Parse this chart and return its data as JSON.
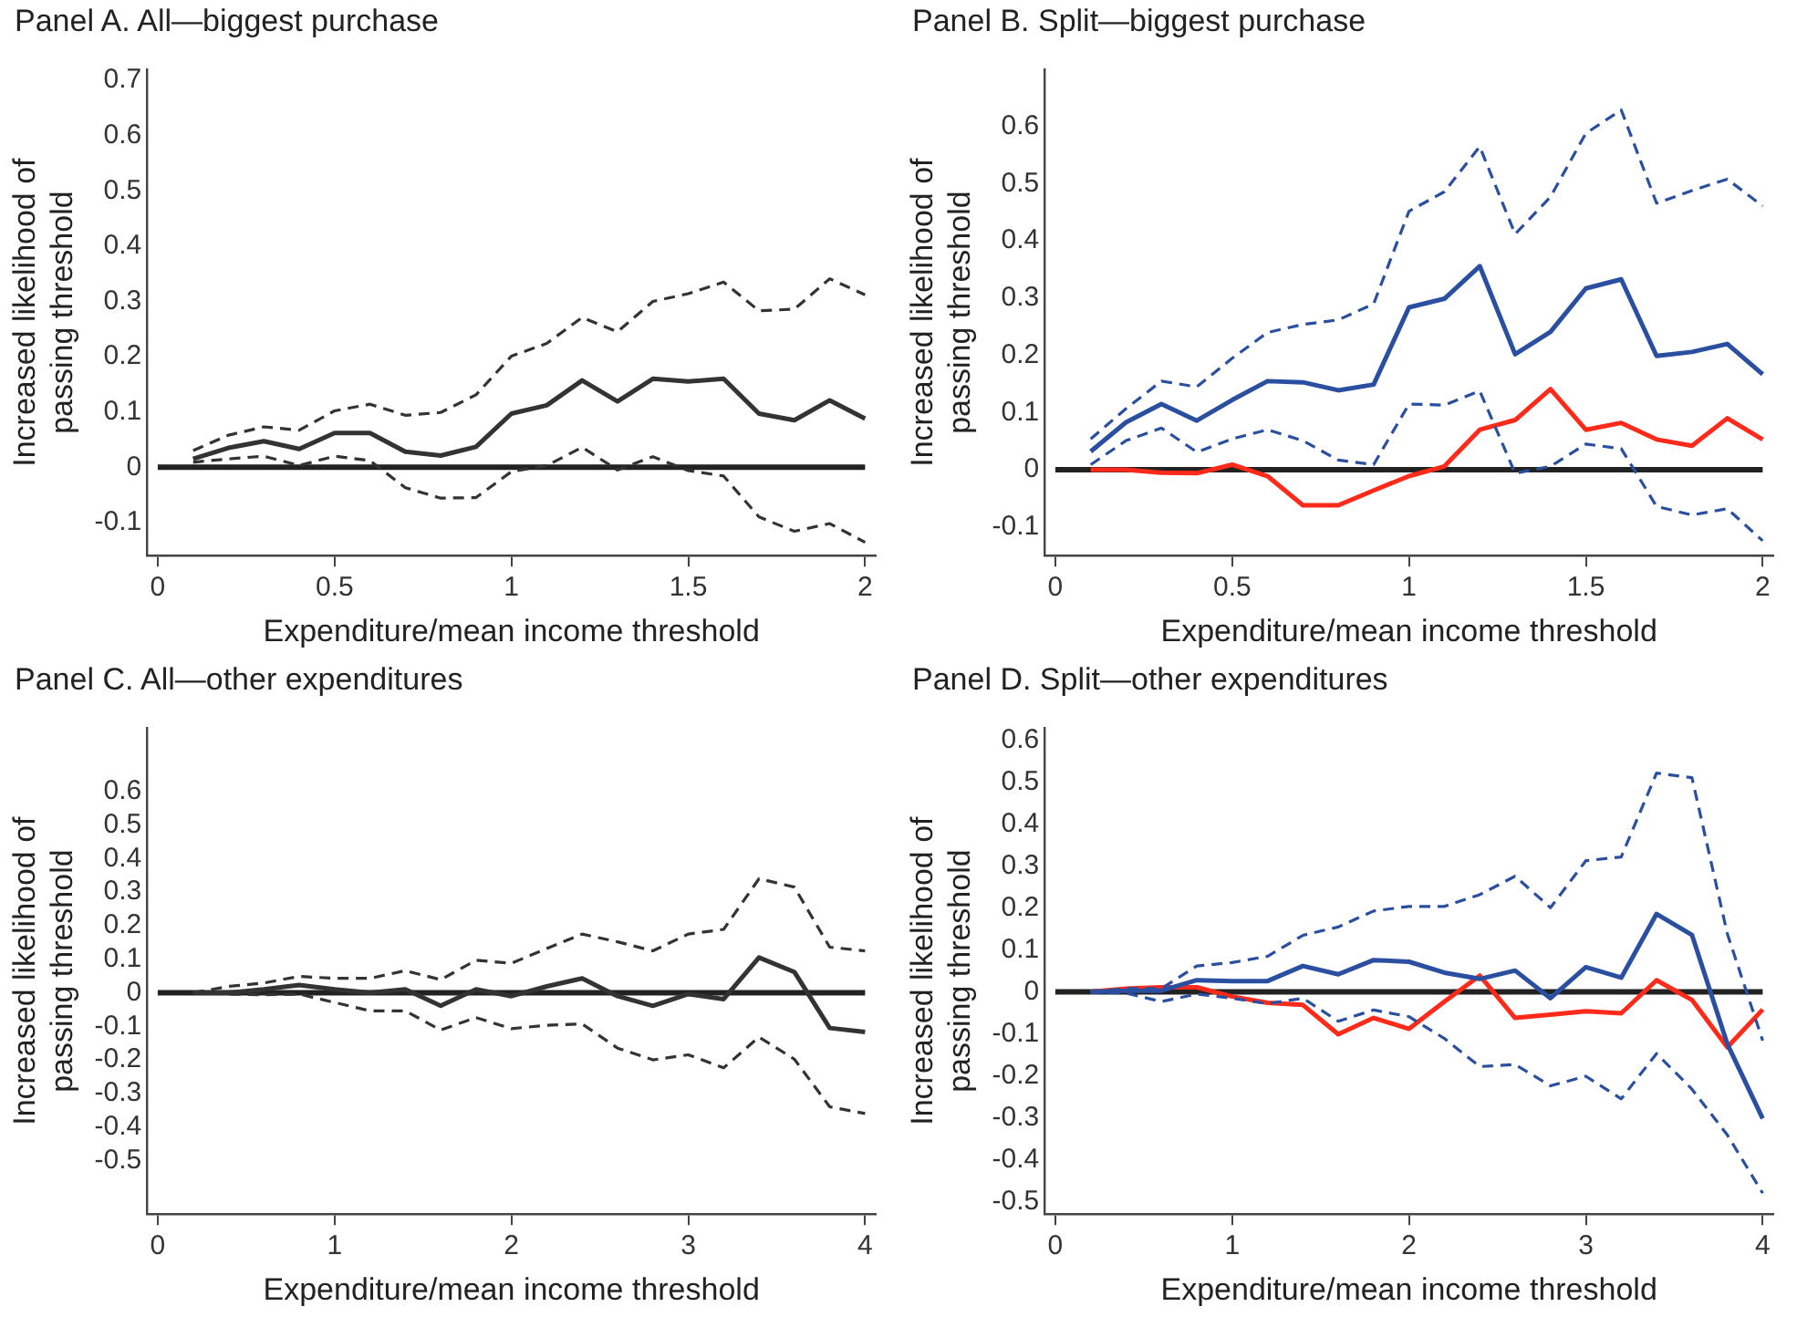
{
  "chart_data": [
    {
      "type": "line",
      "title": "Panel A. All—biggest purchase",
      "xlabel": "Expenditure/mean income threshold",
      "ylabel": "Increased likelihood of passing threshold",
      "x": [
        0.1,
        0.2,
        0.3,
        0.4,
        0.5,
        0.6,
        0.7,
        0.8,
        0.9,
        1.0,
        1.1,
        1.2,
        1.3,
        1.4,
        1.5,
        1.6,
        1.7,
        1.8,
        1.9,
        2.0
      ],
      "xlim": [
        -0.03,
        2.03
      ],
      "xticks": [
        0,
        0.5,
        1,
        1.5,
        2
      ],
      "ylim": [
        -0.16,
        0.72
      ],
      "yticks": [
        -0.1,
        0,
        0.1,
        0.2,
        0.3,
        0.4,
        0.5,
        0.6,
        0.7
      ],
      "grid": false,
      "legend": false,
      "marker": "none",
      "ref_lines": [
        {
          "axis": "y",
          "value": 0,
          "color": "#222222"
        }
      ],
      "series": [
        {
          "color": "#333333",
          "line_style": "solid",
          "values": [
            0.015,
            0.035,
            0.047,
            0.033,
            0.062,
            0.062,
            0.028,
            0.021,
            0.037,
            0.097,
            0.112,
            0.157,
            0.119,
            0.16,
            0.155,
            0.16,
            0.097,
            0.085,
            0.121,
            0.088
          ]
        },
        {
          "color": "#333333",
          "line_style": "dashed",
          "values": [
            0.03,
            0.058,
            0.073,
            0.067,
            0.102,
            0.114,
            0.094,
            0.099,
            0.131,
            0.201,
            0.224,
            0.271,
            0.245,
            0.3,
            0.314,
            0.335,
            0.283,
            0.286,
            0.341,
            0.312
          ]
        },
        {
          "color": "#333333",
          "line_style": "dashed",
          "values": [
            0.009,
            0.015,
            0.02,
            0.003,
            0.02,
            0.012,
            -0.037,
            -0.056,
            -0.055,
            -0.008,
            0.003,
            0.036,
            -0.005,
            0.019,
            -0.006,
            -0.016,
            -0.09,
            -0.116,
            -0.102,
            -0.136
          ]
        }
      ]
    },
    {
      "type": "line",
      "title": "Panel B. Split—biggest purchase",
      "xlabel": "Expenditure/mean income threshold",
      "ylabel": "Increased likelihood of passing threshold",
      "x": [
        0.1,
        0.2,
        0.3,
        0.4,
        0.5,
        0.6,
        0.7,
        0.8,
        0.9,
        1.0,
        1.1,
        1.2,
        1.3,
        1.4,
        1.5,
        1.6,
        1.7,
        1.8,
        1.9,
        2.0
      ],
      "xlim": [
        -0.03,
        2.03
      ],
      "xticks": [
        0,
        0.5,
        1,
        1.5,
        2
      ],
      "ylim": [
        -0.15,
        0.7
      ],
      "yticks": [
        -0.1,
        0,
        0.1,
        0.2,
        0.3,
        0.4,
        0.5,
        0.6
      ],
      "grid": false,
      "legend": false,
      "marker": "none",
      "ref_lines": [
        {
          "axis": "y",
          "value": 0,
          "color": "#222222"
        }
      ],
      "series": [
        {
          "color": "#2a4fa0",
          "line_style": "solid",
          "values": [
            0.032,
            0.083,
            0.115,
            0.086,
            0.122,
            0.155,
            0.153,
            0.139,
            0.149,
            0.284,
            0.299,
            0.356,
            0.202,
            0.241,
            0.317,
            0.333,
            0.199,
            0.206,
            0.22,
            0.167
          ]
        },
        {
          "color": "#2a4fa0",
          "line_style": "dashed",
          "values": [
            0.054,
            0.107,
            0.155,
            0.145,
            0.195,
            0.24,
            0.254,
            0.262,
            0.29,
            0.452,
            0.486,
            0.565,
            0.412,
            0.477,
            0.588,
            0.629,
            0.466,
            0.488,
            0.508,
            0.461
          ]
        },
        {
          "color": "#2a4fa0",
          "line_style": "dashed",
          "values": [
            0.009,
            0.051,
            0.073,
            0.031,
            0.054,
            0.07,
            0.051,
            0.017,
            0.009,
            0.115,
            0.113,
            0.138,
            -0.006,
            0.006,
            0.045,
            0.037,
            -0.064,
            -0.079,
            -0.068,
            -0.124
          ]
        },
        {
          "color": "#ff2a1a",
          "line_style": "solid",
          "values": [
            0,
            0,
            -0.005,
            -0.006,
            0.009,
            -0.011,
            -0.062,
            -0.062,
            -0.036,
            -0.011,
            0.006,
            0.07,
            0.087,
            0.141,
            0.07,
            0.082,
            0.053,
            0.042,
            0.09,
            0.053
          ]
        }
      ]
    },
    {
      "type": "line",
      "title": "Panel C. All—other expenditures",
      "xlabel": "Expenditure/mean income threshold",
      "ylabel": "Increased likelihood of passing threshold",
      "x": [
        0.2,
        0.4,
        0.6,
        0.8,
        1.0,
        1.2,
        1.4,
        1.6,
        1.8,
        2.0,
        2.2,
        2.4,
        2.6,
        2.8,
        3.0,
        3.2,
        3.4,
        3.6,
        3.8,
        4.0
      ],
      "xlim": [
        -0.06,
        4.06
      ],
      "xticks": [
        0,
        1,
        2,
        3,
        4
      ],
      "ylim": [
        -0.66,
        0.79
      ],
      "yticks": [
        -0.5,
        -0.4,
        -0.3,
        -0.2,
        -0.1,
        0,
        0.1,
        0.2,
        0.3,
        0.4,
        0.5,
        0.6
      ],
      "grid": false,
      "legend": false,
      "marker": "none",
      "ref_lines": [
        {
          "axis": "y",
          "value": 0,
          "color": "#222222"
        }
      ],
      "series": [
        {
          "color": "#333333",
          "line_style": "solid",
          "values": [
            0,
            0,
            0.01,
            0.023,
            0.01,
            0,
            0.01,
            -0.039,
            0.01,
            -0.01,
            0.019,
            0.043,
            -0.01,
            -0.039,
            -0.004,
            -0.019,
            0.105,
            0.062,
            -0.105,
            -0.117
          ]
        },
        {
          "color": "#333333",
          "line_style": "dashed",
          "values": [
            0,
            0.019,
            0.029,
            0.049,
            0.043,
            0.043,
            0.066,
            0.039,
            0.097,
            0.088,
            0.132,
            0.175,
            0.152,
            0.125,
            0.175,
            0.189,
            0.34,
            0.315,
            0.136,
            0.125
          ]
        },
        {
          "color": "#333333",
          "line_style": "dashed",
          "values": [
            0,
            -0.004,
            -0.006,
            -0.004,
            -0.029,
            -0.054,
            -0.054,
            -0.111,
            -0.074,
            -0.107,
            -0.097,
            -0.093,
            -0.165,
            -0.2,
            -0.185,
            -0.224,
            -0.132,
            -0.198,
            -0.34,
            -0.36
          ]
        }
      ]
    },
    {
      "type": "line",
      "title": "Panel D. Split—other expenditures",
      "xlabel": "Expenditure/mean income threshold",
      "ylabel": "Increased likelihood of passing threshold",
      "x": [
        0.2,
        0.4,
        0.6,
        0.8,
        1.0,
        1.2,
        1.4,
        1.6,
        1.8,
        2.0,
        2.2,
        2.4,
        2.6,
        2.8,
        3.0,
        3.2,
        3.4,
        3.6,
        3.8,
        4.0
      ],
      "xlim": [
        -0.06,
        4.06
      ],
      "xticks": [
        0,
        1,
        2,
        3,
        4
      ],
      "ylim": [
        -0.53,
        0.63
      ],
      "yticks": [
        -0.5,
        -0.4,
        -0.3,
        -0.2,
        -0.1,
        0,
        0.1,
        0.2,
        0.3,
        0.4,
        0.5,
        0.6
      ],
      "grid": false,
      "legend": false,
      "marker": "none",
      "ref_lines": [
        {
          "axis": "y",
          "value": 0,
          "color": "#222222"
        }
      ],
      "series": [
        {
          "color": "#2a4fa0",
          "line_style": "solid",
          "values": [
            0,
            0.003,
            0.003,
            0.028,
            0.026,
            0.026,
            0.062,
            0.042,
            0.076,
            0.072,
            0.046,
            0.031,
            0.051,
            -0.015,
            0.059,
            0.034,
            0.186,
            0.136,
            -0.124,
            -0.302
          ]
        },
        {
          "color": "#2a4fa0",
          "line_style": "dashed",
          "values": [
            0,
            0.008,
            0.008,
            0.062,
            0.07,
            0.085,
            0.135,
            0.155,
            0.193,
            0.204,
            0.204,
            0.232,
            0.276,
            0.201,
            0.313,
            0.322,
            0.522,
            0.511,
            0.139,
            -0.116
          ]
        },
        {
          "color": "#2a4fa0",
          "line_style": "dashed",
          "values": [
            0,
            -0.003,
            -0.023,
            -0.005,
            -0.015,
            -0.028,
            -0.015,
            -0.07,
            -0.043,
            -0.059,
            -0.111,
            -0.178,
            -0.173,
            -0.224,
            -0.201,
            -0.255,
            -0.147,
            -0.232,
            -0.341,
            -0.48
          ]
        },
        {
          "color": "#ff2a1a",
          "line_style": "solid",
          "values": [
            0,
            0.008,
            0.011,
            0.011,
            -0.011,
            -0.026,
            -0.031,
            -0.101,
            -0.062,
            -0.088,
            -0.023,
            0.039,
            -0.062,
            -0.054,
            -0.046,
            -0.051,
            0.028,
            -0.019,
            -0.132,
            -0.042
          ]
        }
      ]
    }
  ]
}
